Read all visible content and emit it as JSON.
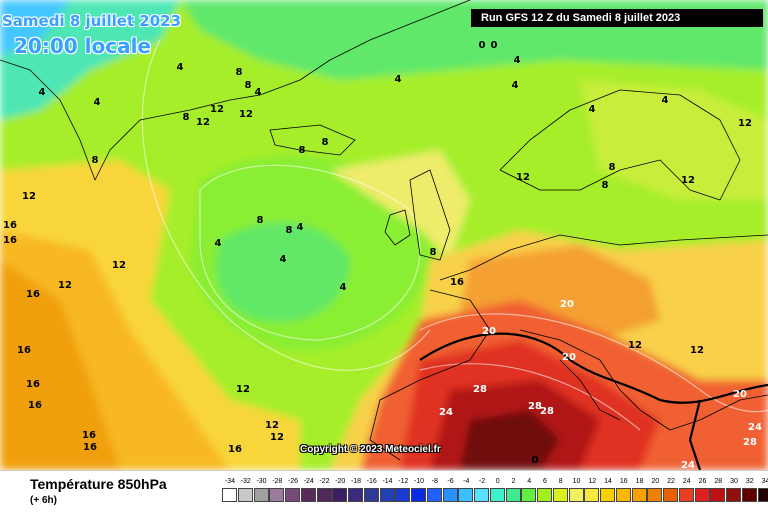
{
  "header": {
    "date": "Samedi 8 juillet 2023",
    "local_time": "20:00 locale",
    "run_info": "Run GFS 12 Z du Samedi 8 juillet 2023"
  },
  "copyright": "Copyright © 2023 Meteociel.fr",
  "footer": {
    "variable": "Température 850hPa",
    "lead_time": "(+ 6h)"
  },
  "legend": {
    "labels": [
      "-34",
      "-32",
      "-30",
      "-28",
      "-26",
      "-24",
      "-22",
      "-20",
      "-18",
      "-16",
      "-14",
      "-12",
      "-10",
      "-8",
      "-6",
      "-4",
      "-2",
      "0",
      "2",
      "4",
      "6",
      "8",
      "10",
      "12",
      "14",
      "16",
      "18",
      "20",
      "22",
      "24",
      "26",
      "28",
      "30",
      "32",
      "34"
    ],
    "colors": [
      "#ffffff",
      "#c8c8c8",
      "#a0a0a0",
      "#9b7a9b",
      "#7a4a7a",
      "#5a2a5a",
      "#50285a",
      "#3c1e64",
      "#3a2a80",
      "#303a96",
      "#2040b4",
      "#1a3ad2",
      "#0a2ae6",
      "#2060ff",
      "#2a90ff",
      "#3ac0ff",
      "#5ae0ff",
      "#40f0c8",
      "#40e890",
      "#60f040",
      "#a0f020",
      "#d8f020",
      "#f0f060",
      "#f8e840",
      "#f8d000",
      "#f8b800",
      "#f8a000",
      "#f08000",
      "#e86000",
      "#e84020",
      "#e02020",
      "#c01010",
      "#901010",
      "#600000",
      "#200000"
    ]
  },
  "isotherms": [
    {
      "text": "4",
      "color": "#000000"
    },
    {
      "text": "4",
      "color": "#000000"
    },
    {
      "text": "4",
      "color": "#000000"
    },
    {
      "text": "4",
      "color": "#000000"
    },
    {
      "text": "4",
      "color": "#000000"
    },
    {
      "text": "4",
      "color": "#000000"
    },
    {
      "text": "4",
      "color": "#000000"
    },
    {
      "text": "4",
      "color": "#000000"
    },
    {
      "text": "4",
      "color": "#000000"
    },
    {
      "text": "4",
      "color": "#000000"
    },
    {
      "text": "4",
      "color": "#000000"
    },
    {
      "text": "4",
      "color": "#000000"
    },
    {
      "text": "4",
      "color": "#000000"
    },
    {
      "text": "8",
      "color": "#000000"
    },
    {
      "text": "8",
      "color": "#000000"
    },
    {
      "text": "8",
      "color": "#000000"
    },
    {
      "text": "8",
      "color": "#000000"
    },
    {
      "text": "8",
      "color": "#000000"
    },
    {
      "text": "8",
      "color": "#000000"
    },
    {
      "text": "8",
      "color": "#000000"
    },
    {
      "text": "8",
      "color": "#000000"
    },
    {
      "text": "8",
      "color": "#000000"
    },
    {
      "text": "8",
      "color": "#000000"
    },
    {
      "text": "8",
      "color": "#000000"
    },
    {
      "text": "12",
      "color": "#000000"
    },
    {
      "text": "12",
      "color": "#000000"
    },
    {
      "text": "12",
      "color": "#000000"
    },
    {
      "text": "12",
      "color": "#000000"
    },
    {
      "text": "12",
      "color": "#000000"
    },
    {
      "text": "12",
      "color": "#000000"
    },
    {
      "text": "12",
      "color": "#000000"
    },
    {
      "text": "12",
      "color": "#000000"
    },
    {
      "text": "12",
      "color": "#000000"
    },
    {
      "text": "12",
      "color": "#000000"
    },
    {
      "text": "12",
      "color": "#000000"
    },
    {
      "text": "16",
      "color": "#000000"
    },
    {
      "text": "16",
      "color": "#000000"
    },
    {
      "text": "16",
      "color": "#000000"
    },
    {
      "text": "16",
      "color": "#000000"
    },
    {
      "text": "16",
      "color": "#000000"
    },
    {
      "text": "16",
      "color": "#000000"
    },
    {
      "text": "16",
      "color": "#000000"
    },
    {
      "text": "16",
      "color": "#000000"
    },
    {
      "text": "16",
      "color": "#000000"
    },
    {
      "text": "16",
      "color": "#000000"
    },
    {
      "text": "20",
      "color": "#ffffff"
    },
    {
      "text": "20",
      "color": "#ffffff"
    },
    {
      "text": "20",
      "color": "#ffffff"
    },
    {
      "text": "20",
      "color": "#ffffff"
    },
    {
      "text": "24",
      "color": "#ffffff"
    },
    {
      "text": "24",
      "color": "#ffffff"
    },
    {
      "text": "24",
      "color": "#ffffff"
    },
    {
      "text": "28",
      "color": "#ffffff"
    },
    {
      "text": "28",
      "color": "#ffffff"
    },
    {
      "text": "28",
      "color": "#ffffff"
    },
    {
      "text": "28",
      "color": "#ffffff"
    },
    {
      "text": "0",
      "color": "#000000"
    },
    {
      "text": "0",
      "color": "#000000"
    },
    {
      "text": "0",
      "color": "#000000"
    },
    {
      "text": "12",
      "color": "#000000"
    },
    {
      "text": "12",
      "color": "#000000"
    },
    {
      "text": "12",
      "color": "#000000"
    }
  ]
}
